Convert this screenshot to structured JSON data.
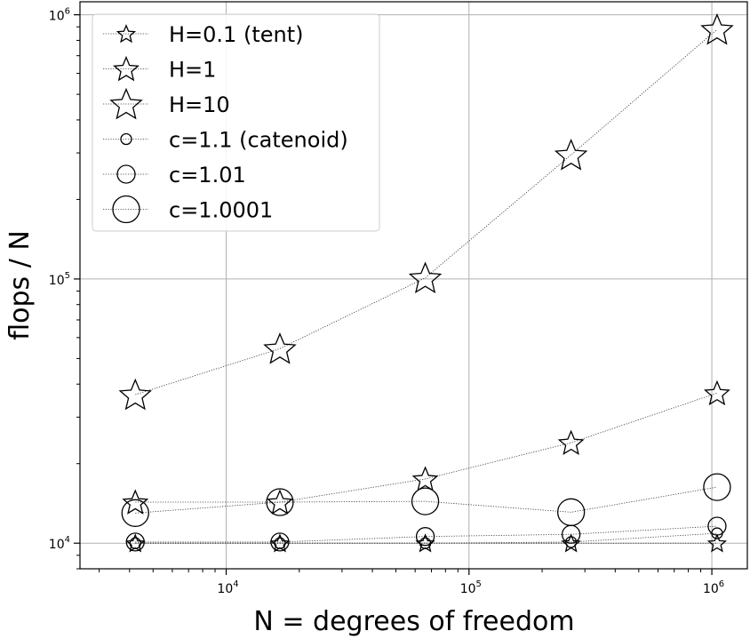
{
  "chart_data": {
    "type": "scatter",
    "title": "",
    "xlabel": "N = degrees of freedom",
    "ylabel": "flops / N",
    "xscale": "log",
    "yscale": "log",
    "xlim": [
      2500,
      1400000
    ],
    "ylim": [
      8000,
      1120000
    ],
    "grid": true,
    "legend_position": "top-left",
    "x_ticks": [
      {
        "value": 10000,
        "base": "10",
        "exp": "4"
      },
      {
        "value": 100000,
        "base": "10",
        "exp": "5"
      },
      {
        "value": 1000000,
        "base": "10",
        "exp": "6"
      }
    ],
    "y_ticks": [
      {
        "value": 10000,
        "base": "10",
        "exp": "4"
      },
      {
        "value": 100000,
        "base": "10",
        "exp": "5"
      },
      {
        "value": 1000000,
        "base": "10",
        "exp": "6"
      }
    ],
    "series": [
      {
        "name": "H=0.1 (tent)",
        "marker": "star",
        "size": "small",
        "x": [
          4225,
          16641,
          66049,
          263169,
          1050625
        ],
        "y": [
          10000,
          10000,
          10000,
          10000,
          10000
        ]
      },
      {
        "name": "H=1",
        "marker": "star",
        "size": "medium",
        "x": [
          4225,
          16641,
          66049,
          263169,
          1050625
        ],
        "y": [
          14300,
          14300,
          17500,
          24000,
          37000
        ]
      },
      {
        "name": "H=10",
        "marker": "star",
        "size": "large",
        "x": [
          4225,
          16641,
          66049,
          263169,
          1050625
        ],
        "y": [
          36500,
          54500,
          101000,
          295000,
          880000
        ]
      },
      {
        "name": "c=1.1 (catenoid)",
        "marker": "circle",
        "size": "small",
        "x": [
          4225,
          16641,
          66049,
          263169,
          1050625
        ],
        "y": [
          10000,
          10000,
          10000,
          10100,
          10900
        ]
      },
      {
        "name": "c=1.01",
        "marker": "circle",
        "size": "medium",
        "x": [
          4225,
          16641,
          66049,
          263169,
          1050625
        ],
        "y": [
          10100,
          10100,
          10600,
          10800,
          11600
        ]
      },
      {
        "name": "c=1.0001",
        "marker": "circle",
        "size": "large",
        "x": [
          4225,
          16641,
          66049,
          263169,
          1050625
        ],
        "y": [
          13000,
          14300,
          14400,
          13100,
          16300
        ]
      }
    ]
  }
}
